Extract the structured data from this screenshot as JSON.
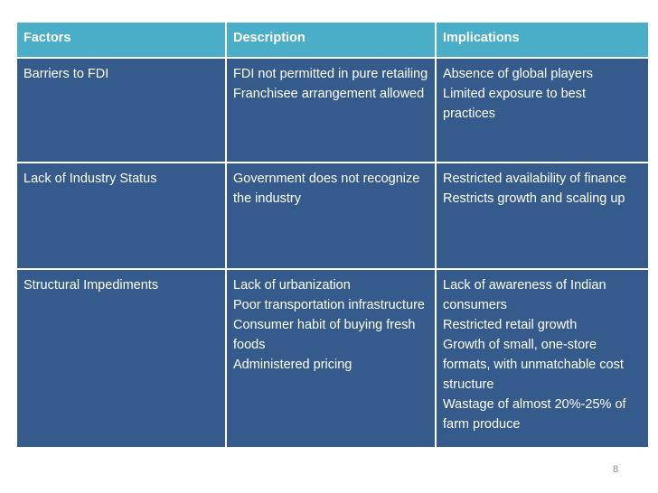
{
  "table": {
    "headers": [
      "Factors",
      "Description",
      "Implications"
    ],
    "rows": [
      {
        "factor": "Barriers to FDI",
        "description": " FDI not permitted in pure retailing\n Franchisee arrangement allowed",
        "implications": " Absence of global players\n Limited exposure to best practices"
      },
      {
        "factor": "Lack of Industry Status",
        "description": " Government does not recognize the industry",
        "implications": " Restricted availability of finance\n Restricts growth and scaling up"
      },
      {
        "factor": "Structural Impediments",
        "description": "Lack of urbanization\nPoor transportation infrastructure\nConsumer habit of buying fresh foods\nAdministered pricing",
        "implications": " Lack of awareness of Indian consumers\n Restricted retail growth\n Growth of small, one-store formats, with    unmatchable cost structure\n Wastage of almost 20%-25% of farm produce"
      }
    ]
  },
  "page_number": "8",
  "colors": {
    "header_bg": "#4aaec9",
    "body_bg": "#345b8c",
    "text": "#ffffff"
  }
}
